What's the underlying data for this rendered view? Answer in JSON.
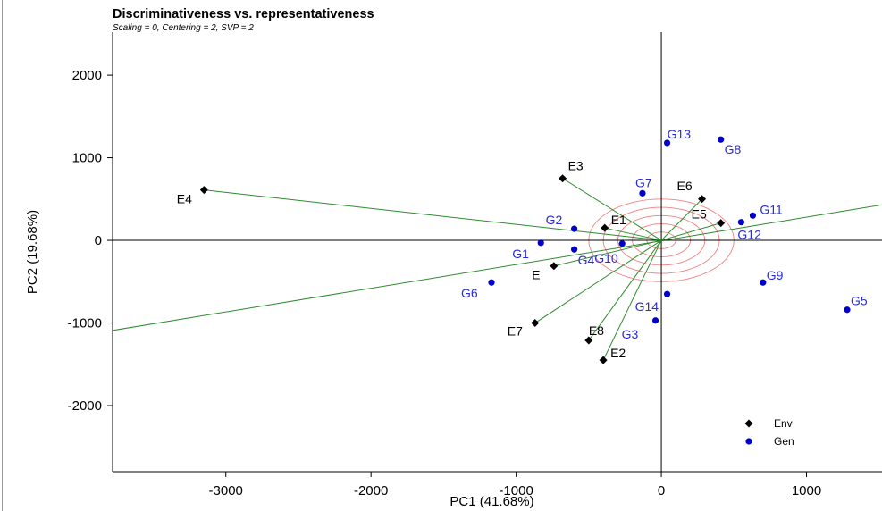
{
  "chart_data": {
    "type": "scatter",
    "title": "Discriminativeness vs. representativeness",
    "subtitle": "Scaling = 0, Centering = 2, SVP = 2",
    "xlabel": "PC1 (41.68%)",
    "ylabel": "PC2 (19.68%)",
    "xlim": [
      -3780,
      1520
    ],
    "ylim": [
      -2800,
      2520
    ],
    "xticks": [
      -3000,
      -2000,
      -1000,
      0,
      1000
    ],
    "yticks": [
      -2000,
      -1000,
      0,
      1000,
      2000
    ],
    "xtick_labels": [
      "-3000",
      "-2000",
      "-1000",
      "0",
      "1000"
    ],
    "ytick_labels": [
      "-2000",
      "-1000",
      "0",
      "1000",
      "2000"
    ],
    "grid": false,
    "legend_position": "bottom-right",
    "legend": [
      {
        "label": "Env",
        "marker": "diamond",
        "color": "#000000"
      },
      {
        "label": "Gen",
        "marker": "circle",
        "color": "#0000cc"
      }
    ],
    "colors": {
      "env_point": "#000000",
      "env_label": "#000000",
      "gen_point": "#0000cc",
      "gen_label": "#2b2bd6",
      "vector": "#2e8b2e",
      "concentric": "#f08080",
      "axes": "#000000"
    },
    "series": [
      {
        "name": "Env",
        "points": [
          {
            "label": "E",
            "x": -740,
            "y": -310
          },
          {
            "label": "E1",
            "x": -390,
            "y": 150
          },
          {
            "label": "E2",
            "x": -400,
            "y": -1450
          },
          {
            "label": "E3",
            "x": -680,
            "y": 750
          },
          {
            "label": "E4",
            "x": -3150,
            "y": 610
          },
          {
            "label": "E5",
            "x": 410,
            "y": 210
          },
          {
            "label": "E6",
            "x": 280,
            "y": 500
          },
          {
            "label": "E7",
            "x": -870,
            "y": -1000
          },
          {
            "label": "E8",
            "x": -500,
            "y": -1210
          }
        ]
      },
      {
        "name": "Gen",
        "points": [
          {
            "label": "G1",
            "x": -830,
            "y": -30
          },
          {
            "label": "G2",
            "x": -600,
            "y": 140
          },
          {
            "label": "G3",
            "x": -40,
            "y": -970
          },
          {
            "label": "G4",
            "x": -600,
            "y": -110
          },
          {
            "label": "G5",
            "x": 1280,
            "y": -840
          },
          {
            "label": "G6",
            "x": -1170,
            "y": -510
          },
          {
            "label": "G7",
            "x": -130,
            "y": 570
          },
          {
            "label": "G8",
            "x": 410,
            "y": 1220
          },
          {
            "label": "G9",
            "x": 700,
            "y": -510
          },
          {
            "label": "G10",
            "x": -270,
            "y": -40
          },
          {
            "label": "G11",
            "x": 630,
            "y": 300
          },
          {
            "label": "G12",
            "x": 550,
            "y": 220
          },
          {
            "label": "G13",
            "x": 40,
            "y": 1180
          },
          {
            "label": "G14",
            "x": 40,
            "y": -650
          }
        ]
      }
    ],
    "average_environment_axis": {
      "through": [
        [
          -3780,
          -1090
        ],
        [
          1520,
          430
        ]
      ]
    },
    "concentric_circles_radii": [
      100,
      200,
      300,
      400,
      500
    ]
  }
}
